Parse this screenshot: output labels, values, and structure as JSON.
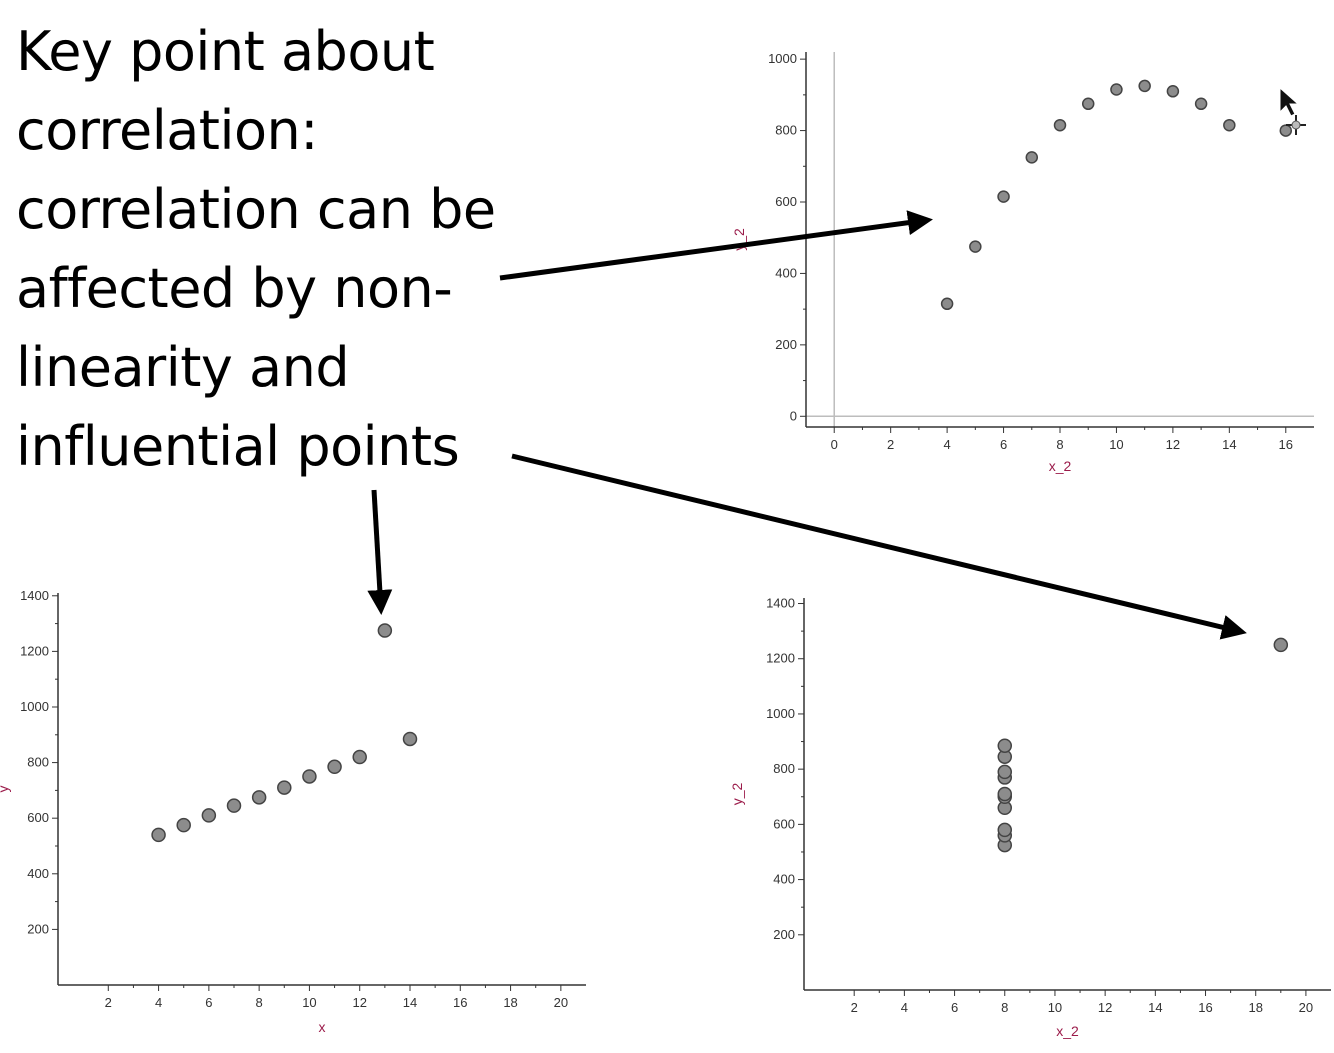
{
  "headline": {
    "lines": [
      "Key point about",
      "correlation:",
      "correlation can be",
      "affected by non-",
      "linearity and",
      "influential points"
    ]
  },
  "colors": {
    "marker_fill": "#8c8c8c",
    "marker_stroke": "#444444",
    "axis_label": "#9b1b4a",
    "arrow": "#000000"
  },
  "chart_data": [
    {
      "type": "scatter",
      "xlabel": "x_2",
      "ylabel": "y_2",
      "xlim": [
        -1,
        17
      ],
      "ylim": [
        -30,
        1020
      ],
      "xticks": [
        0,
        2,
        4,
        6,
        8,
        10,
        12,
        14,
        16
      ],
      "yticks": [
        0,
        200,
        400,
        600,
        800,
        1000
      ],
      "x": [
        4,
        5,
        6,
        7,
        8,
        9,
        10,
        11,
        12,
        13,
        14,
        16
      ],
      "y": [
        315,
        475,
        615,
        725,
        815,
        875,
        915,
        925,
        910,
        875,
        815,
        800
      ]
    },
    {
      "type": "scatter",
      "xlabel": "x",
      "ylabel": "y",
      "xlim": [
        0,
        21
      ],
      "ylim": [
        0,
        1410
      ],
      "xticks": [
        2,
        4,
        6,
        8,
        10,
        12,
        14,
        16,
        18,
        20
      ],
      "yticks": [
        200,
        400,
        600,
        800,
        1000,
        1200,
        1400
      ],
      "x": [
        4,
        5,
        6,
        7,
        8,
        9,
        10,
        11,
        12,
        13,
        14
      ],
      "y": [
        540,
        575,
        610,
        645,
        675,
        710,
        750,
        785,
        820,
        1275,
        885
      ]
    },
    {
      "type": "scatter",
      "xlabel": "x_2",
      "ylabel": "y_2",
      "xlim": [
        0,
        21
      ],
      "ylim": [
        0,
        1420
      ],
      "xticks": [
        2,
        4,
        6,
        8,
        10,
        12,
        14,
        16,
        18,
        20
      ],
      "yticks": [
        200,
        400,
        600,
        800,
        1000,
        1200,
        1400
      ],
      "x": [
        8,
        8,
        8,
        8,
        8,
        8,
        8,
        8,
        8,
        8,
        19
      ],
      "y": [
        525,
        560,
        580,
        660,
        700,
        710,
        770,
        790,
        845,
        885,
        1250
      ]
    }
  ]
}
